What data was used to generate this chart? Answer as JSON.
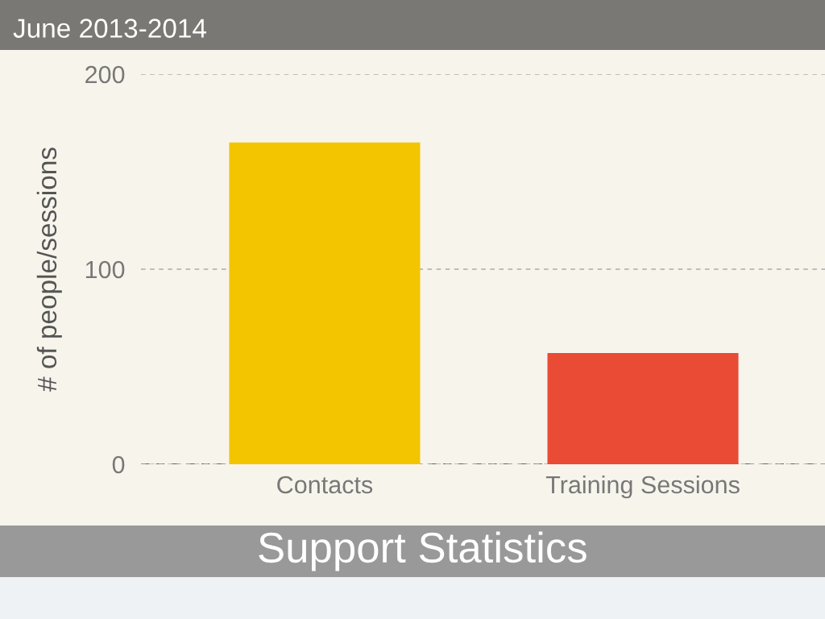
{
  "chart_data": {
    "type": "bar",
    "title": "Support Statistics",
    "subtitle": "June 2013-2014",
    "ylabel": "# of people/sessions",
    "categories": [
      "Contacts",
      "Training Sessions"
    ],
    "values": [
      165,
      57
    ],
    "colors": [
      "#f2c500",
      "#e94b35"
    ],
    "ylim": [
      0,
      200
    ],
    "yticks": [
      0,
      100,
      200
    ],
    "grid": "y"
  }
}
